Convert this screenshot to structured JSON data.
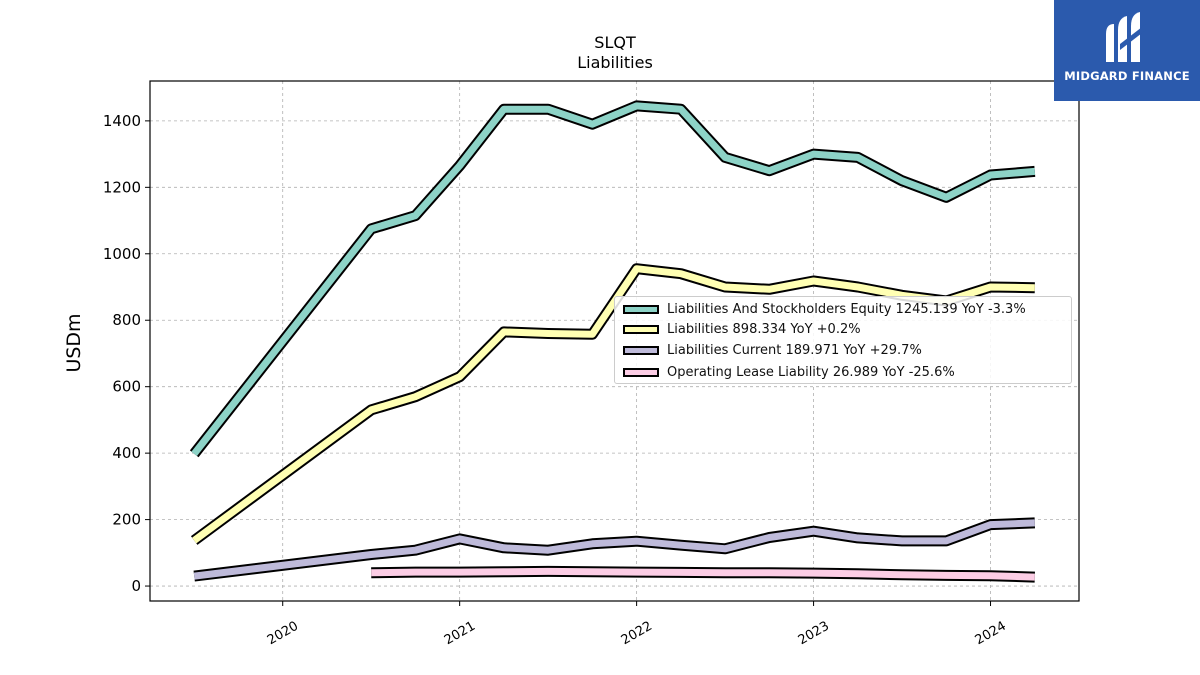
{
  "chart_data": {
    "type": "line",
    "title": "SLQT",
    "subtitle": "Liabilities",
    "ylabel": "USDm",
    "xlabel": "",
    "ylim": [
      -45,
      1520
    ],
    "xlim": [
      2019.25,
      2024.5
    ],
    "yticks": [
      0,
      200,
      400,
      600,
      800,
      1000,
      1200,
      1400
    ],
    "xticks": [
      "2020",
      "2021",
      "2022",
      "2023",
      "2024"
    ],
    "grid": true,
    "legend_position": "center-right",
    "series": [
      {
        "name": "Liabilities And Stockholders Equity",
        "legend_label": "Liabilities And Stockholders Equity  1245.139 YoY -3.3%",
        "color": "#8dd3c7",
        "x": [
          2019.5,
          2020.5,
          2020.75,
          2021.0,
          2021.25,
          2021.5,
          2021.75,
          2022.0,
          2022.25,
          2022.5,
          2022.75,
          2023.0,
          2023.25,
          2023.5,
          2023.75,
          2024.0,
          2024.25
        ],
        "values": [
          398,
          1075,
          1115,
          1265,
          1435,
          1435,
          1390,
          1445,
          1435,
          1290,
          1250,
          1300,
          1290,
          1220,
          1170,
          1237,
          1248
        ]
      },
      {
        "name": "Liabilities",
        "legend_label": "Liabilities  898.334 YoY +0.2%",
        "color": "#ffffb3",
        "x": [
          2019.5,
          2020.5,
          2020.75,
          2021.0,
          2021.25,
          2021.5,
          2021.75,
          2022.0,
          2022.25,
          2022.5,
          2022.75,
          2023.0,
          2023.25,
          2023.5,
          2023.75,
          2024.0,
          2024.25
        ],
        "values": [
          137,
          530,
          570,
          630,
          765,
          760,
          758,
          955,
          940,
          900,
          893,
          918,
          900,
          875,
          858,
          900,
          898
        ]
      },
      {
        "name": "Liabilities Current",
        "legend_label": "Liabilities Current  189.971 YoY +29.7%",
        "color": "#bebada",
        "x": [
          2019.5,
          2020.5,
          2020.75,
          2021.0,
          2021.25,
          2021.5,
          2021.75,
          2022.0,
          2022.25,
          2022.5,
          2022.75,
          2023.0,
          2023.25,
          2023.5,
          2023.75,
          2024.0,
          2024.25
        ],
        "values": [
          30,
          95,
          108,
          142,
          115,
          108,
          127,
          135,
          123,
          112,
          146,
          165,
          145,
          136,
          136,
          185,
          190
        ]
      },
      {
        "name": "Operating Lease Liability",
        "legend_label": "Operating Lease Liability  26.989 YoY -25.6%",
        "color": "#fccde5",
        "x": [
          2020.5,
          2020.75,
          2021.0,
          2021.25,
          2021.5,
          2021.75,
          2022.0,
          2022.25,
          2022.5,
          2022.75,
          2023.0,
          2023.25,
          2023.5,
          2023.75,
          2024.0,
          2024.25
        ],
        "values": [
          40,
          42,
          42,
          43,
          44,
          43,
          42,
          41,
          40,
          40,
          39,
          37,
          34,
          32,
          31,
          27
        ]
      }
    ]
  },
  "logo": {
    "text": "MIDGARD FINANCE",
    "icon": "midgard-m-logo-icon",
    "background": "#2b5aad"
  }
}
